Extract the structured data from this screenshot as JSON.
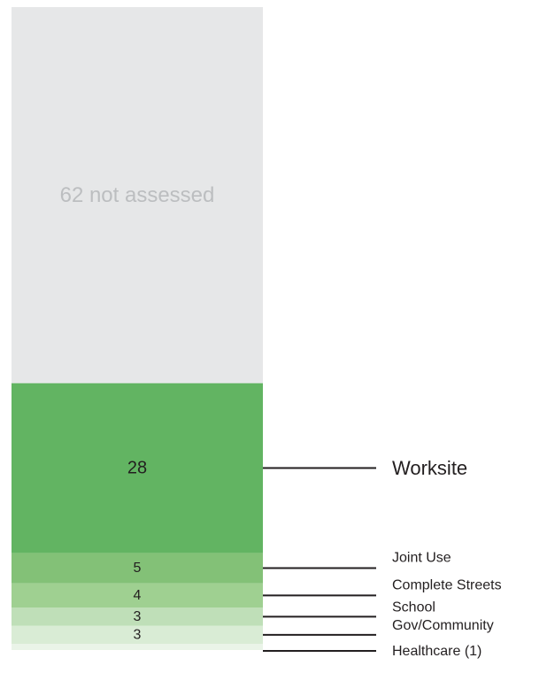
{
  "chart_data": {
    "type": "bar",
    "stacked": true,
    "orientation": "vertical",
    "grid": false,
    "legend": "none",
    "segments": [
      {
        "category": "Healthcare (1)",
        "value": 1,
        "bar_label": "",
        "callout": "Healthcare (1)",
        "color": "#eaf4e8"
      },
      {
        "category": "Gov/Community",
        "value": 3,
        "bar_label": "3",
        "callout": "Gov/Community",
        "color": "#d9ecd5"
      },
      {
        "category": "School",
        "value": 3,
        "bar_label": "3",
        "callout": "School",
        "color": "#bfdfb8"
      },
      {
        "category": "Complete Streets",
        "value": 4,
        "bar_label": "4",
        "callout": "Complete Streets",
        "color": "#9fd091"
      },
      {
        "category": "Joint Use",
        "value": 5,
        "bar_label": "5",
        "callout": "Joint Use",
        "color": "#83c177"
      },
      {
        "category": "Worksite",
        "value": 28,
        "bar_label": "28",
        "callout": "Worksite",
        "color": "#62b462"
      },
      {
        "category": "not assessed",
        "value": 62,
        "bar_label": "62 not assessed",
        "callout": "",
        "color": "#e6e7e8"
      }
    ]
  }
}
